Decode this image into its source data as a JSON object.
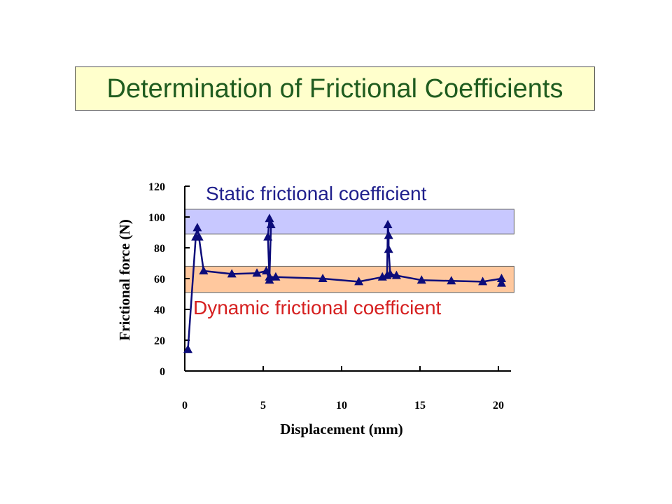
{
  "title": "Determination of Frictional Coefficients",
  "colors": {
    "title_bg": "#ffffcc",
    "title_text": "#1f5c1f",
    "series": "#0c0c7a",
    "static_band": "#c8c8ff",
    "dynamic_band": "#ffc89e",
    "static_label": "#1f1f8c",
    "dynamic_label": "#d62020"
  },
  "chart_data": {
    "type": "line",
    "title": "",
    "xlabel": "Displacement (mm)",
    "ylabel": "Frictional force (N)",
    "xlim": [
      0,
      20
    ],
    "ylim": [
      0,
      120
    ],
    "xticks": [
      0,
      5,
      10,
      15,
      20
    ],
    "yticks": [
      0,
      20,
      40,
      60,
      80,
      100,
      120
    ],
    "grid": false,
    "marker": "triangle",
    "bands": [
      {
        "label": "Static frictional coefficient",
        "y_range": [
          89,
          105
        ],
        "x_range": [
          0,
          21
        ]
      },
      {
        "label": "Dynamic frictional coefficient",
        "y_range": [
          51,
          68
        ],
        "x_range": [
          0,
          21
        ]
      }
    ],
    "series": [
      {
        "x": [
          0.2,
          0.7,
          0.8,
          0.9,
          1.2,
          3.0,
          4.6,
          5.2,
          5.4,
          5.3,
          5.4,
          5.5,
          5.4,
          5.8,
          8.8,
          11.1,
          12.6,
          12.9,
          12.95,
          13.0,
          13.0,
          13.1,
          13.5,
          15.1,
          17.0,
          19.0,
          20.2,
          20.2
        ],
        "y": [
          14,
          87,
          93,
          87,
          65,
          63,
          63.5,
          65,
          59,
          87,
          99,
          95,
          61,
          61,
          60,
          58,
          61,
          62,
          95,
          88,
          79,
          63,
          62,
          59,
          58.5,
          58,
          60,
          57
        ]
      }
    ]
  }
}
